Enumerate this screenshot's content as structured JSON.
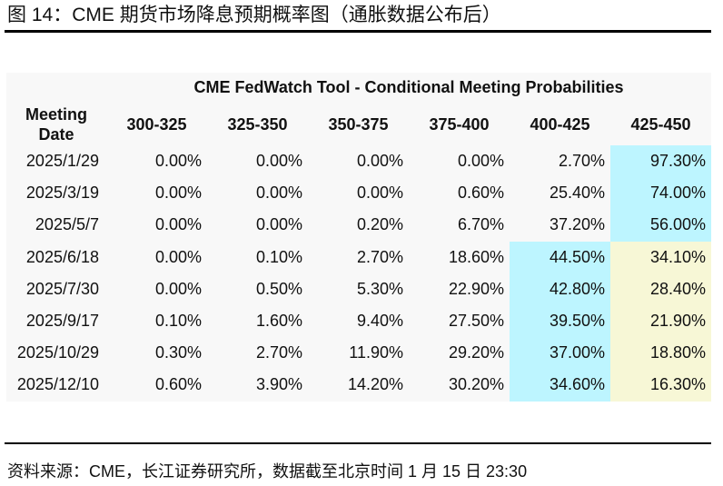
{
  "figure": {
    "title": "图 14：CME 期货市场降息预期概率图（通胀数据公布后）",
    "source": "资料来源：CME，长江证券研究所，数据截至北京时间 1 月 15 日 23:30"
  },
  "table": {
    "super_header": "CME FedWatch Tool - Conditional Meeting Probabilities",
    "columns": [
      "Meeting Date",
      "300-325",
      "325-350",
      "350-375",
      "375-400",
      "400-425",
      "425-450"
    ],
    "rows": [
      {
        "date": "2025/1/29",
        "values": [
          "0.00%",
          "0.00%",
          "0.00%",
          "0.00%",
          "2.70%",
          "97.30%"
        ],
        "highlight": [
          null,
          null,
          null,
          null,
          null,
          "cyan"
        ]
      },
      {
        "date": "2025/3/19",
        "values": [
          "0.00%",
          "0.00%",
          "0.00%",
          "0.60%",
          "25.40%",
          "74.00%"
        ],
        "highlight": [
          null,
          null,
          null,
          null,
          null,
          "cyan"
        ]
      },
      {
        "date": "2025/5/7",
        "values": [
          "0.00%",
          "0.00%",
          "0.20%",
          "6.70%",
          "37.20%",
          "56.00%"
        ],
        "highlight": [
          null,
          null,
          null,
          null,
          null,
          "cyan"
        ]
      },
      {
        "date": "2025/6/18",
        "values": [
          "0.00%",
          "0.10%",
          "2.70%",
          "18.60%",
          "44.50%",
          "34.10%"
        ],
        "highlight": [
          null,
          null,
          null,
          null,
          "cyan",
          "yellow"
        ]
      },
      {
        "date": "2025/7/30",
        "values": [
          "0.00%",
          "0.50%",
          "5.30%",
          "22.90%",
          "42.80%",
          "28.40%"
        ],
        "highlight": [
          null,
          null,
          null,
          null,
          "cyan",
          "yellow"
        ]
      },
      {
        "date": "2025/9/17",
        "values": [
          "0.10%",
          "1.60%",
          "9.40%",
          "27.50%",
          "39.50%",
          "21.90%"
        ],
        "highlight": [
          null,
          null,
          null,
          null,
          "cyan",
          "yellow"
        ]
      },
      {
        "date": "2025/10/29",
        "values": [
          "0.30%",
          "2.70%",
          "11.90%",
          "29.20%",
          "37.00%",
          "18.80%"
        ],
        "highlight": [
          null,
          null,
          null,
          null,
          "cyan",
          "yellow"
        ]
      },
      {
        "date": "2025/12/10",
        "values": [
          "0.60%",
          "3.90%",
          "14.20%",
          "30.20%",
          "34.60%",
          "16.30%"
        ],
        "highlight": [
          null,
          null,
          null,
          null,
          "cyan",
          "yellow"
        ]
      }
    ],
    "colors": {
      "cyan": "#bdf5ff",
      "yellow": "#f7f7d6",
      "background": "#f8f8f8"
    }
  }
}
